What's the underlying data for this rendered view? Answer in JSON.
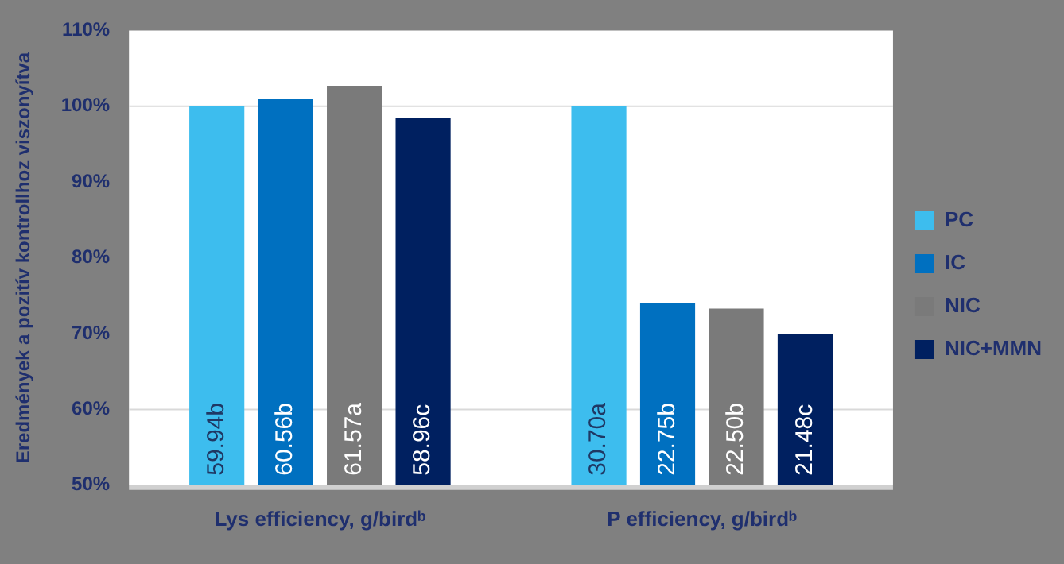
{
  "chart_data": {
    "type": "bar",
    "ylabel": "Eredmények a pozitív kontrollhoz viszonyítva",
    "categories": [
      "Lys efficiency, g/birdᵇ",
      "P efficiency, g/birdᵇ"
    ],
    "series": [
      {
        "name": "PC",
        "color": "#3dbdee",
        "values": [
          100,
          100
        ]
      },
      {
        "name": "IC",
        "color": "#0070c0",
        "values": [
          101.0,
          74.1
        ]
      },
      {
        "name": "NIC",
        "color": "#7a7a7a",
        "values": [
          102.7,
          73.3
        ]
      },
      {
        "name": "NIC+MMN",
        "color": "#002060",
        "values": [
          98.4,
          70.0
        ]
      }
    ],
    "annotations": [
      "59.94b",
      "60.56b",
      "61.57a",
      "58.96c",
      "30.70a",
      "22.75b",
      "22.50b",
      "21.48c"
    ],
    "ylim": [
      50,
      110
    ],
    "yticks": [
      {
        "value": 50,
        "label": "50%"
      },
      {
        "value": 60,
        "label": "60%"
      },
      {
        "value": 70,
        "label": "70%"
      },
      {
        "value": 80,
        "label": "80%"
      },
      {
        "value": 90,
        "label": "90%"
      },
      {
        "value": 100,
        "label": "100%"
      },
      {
        "value": 110,
        "label": "110%"
      }
    ],
    "ref_lines": [
      {
        "axis": "y",
        "value": 100,
        "color": "#d9d9d9"
      },
      {
        "axis": "y",
        "value": 60,
        "color": "#d9d9d9"
      }
    ],
    "grid": false,
    "legend": "right"
  }
}
